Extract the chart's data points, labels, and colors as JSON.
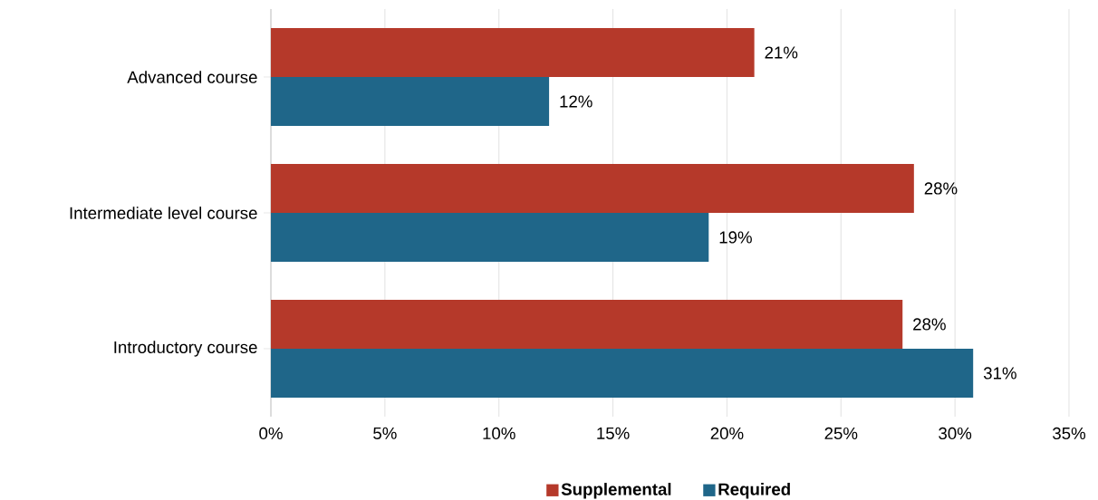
{
  "chart_data": {
    "type": "bar",
    "orientation": "horizontal",
    "categories": [
      "Advanced course",
      "Intermediate level course",
      "Introductory course"
    ],
    "series": [
      {
        "name": "Supplemental",
        "color": "#b5392a",
        "values": [
          21.2,
          28.2,
          27.7
        ],
        "value_labels": [
          "21%",
          "28%",
          "28%"
        ]
      },
      {
        "name": "Required",
        "color": "#1f6689",
        "values": [
          12.2,
          19.2,
          30.8
        ],
        "value_labels": [
          "12%",
          "19%",
          "31%"
        ]
      }
    ],
    "xlim": [
      0,
      35
    ],
    "xticks": [
      {
        "value": 0,
        "label": "0%"
      },
      {
        "value": 5,
        "label": "5%"
      },
      {
        "value": 10,
        "label": "10%"
      },
      {
        "value": 15,
        "label": "15%"
      },
      {
        "value": 20,
        "label": "20%"
      },
      {
        "value": 25,
        "label": "25%"
      },
      {
        "value": 30,
        "label": "30%"
      },
      {
        "value": 35,
        "label": "35%"
      }
    ],
    "grid": "x",
    "legend": "bottom"
  }
}
